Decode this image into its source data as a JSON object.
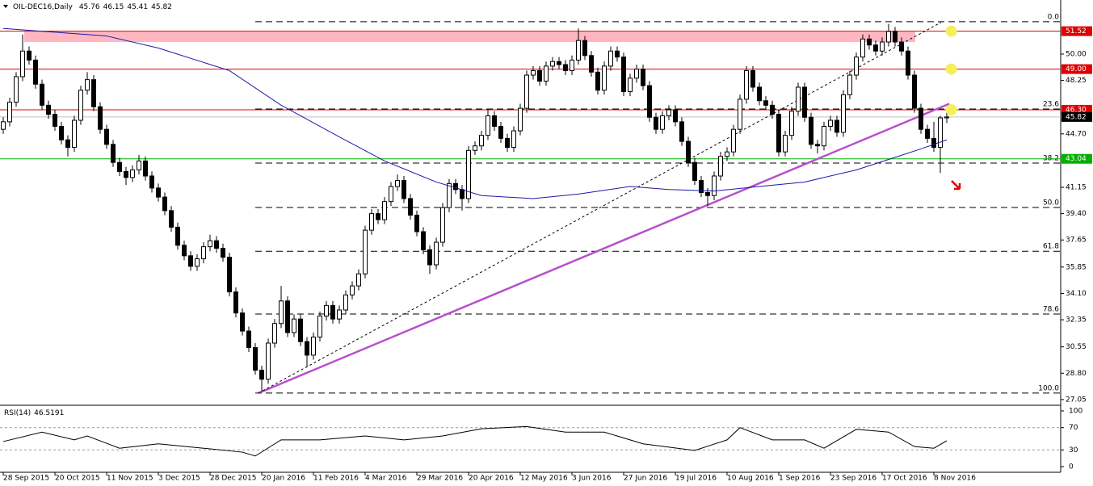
{
  "chart_data": {
    "type": "candlestick",
    "title": "OIL-DEC16,Daily",
    "rsi_title": "RSI(14)",
    "ylim": [
      26.67,
      53.59
    ],
    "yticks": [
      {
        "value": 50,
        "label": "50.00"
      },
      {
        "value": 48.25,
        "label": "48.25"
      },
      {
        "value": 44.7,
        "label": "44.70"
      },
      {
        "value": 41.15,
        "label": "41.15"
      },
      {
        "value": 39.4,
        "label": "39.40"
      },
      {
        "value": 37.65,
        "label": "37.65"
      },
      {
        "value": 35.85,
        "label": "35.85"
      },
      {
        "value": 34.1,
        "label": "34.10"
      },
      {
        "value": 32.35,
        "label": "32.35"
      },
      {
        "value": 30.55,
        "label": "30.55"
      },
      {
        "value": 28.8,
        "label": "28.80"
      },
      {
        "value": 27.05,
        "label": "27.05"
      }
    ],
    "xticks": [
      {
        "value": 0,
        "label": "28 Sep 2015"
      },
      {
        "value": 8,
        "label": "20 Oct 2015"
      },
      {
        "value": 16,
        "label": "11 Nov 2015"
      },
      {
        "value": 24,
        "label": "3 Dec 2015"
      },
      {
        "value": 32,
        "label": "28 Dec 2015"
      },
      {
        "value": 40,
        "label": "20 Jan 2016"
      },
      {
        "value": 48,
        "label": "11 Feb 2016"
      },
      {
        "value": 56,
        "label": "4 Mar 2016"
      },
      {
        "value": 64,
        "label": "29 Mar 2016"
      },
      {
        "value": 72,
        "label": "20 Apr 2016"
      },
      {
        "value": 80,
        "label": "12 May 2016"
      },
      {
        "value": 88,
        "label": "3 Jun 2016"
      },
      {
        "value": 96,
        "label": "27 Jun 2016"
      },
      {
        "value": 104,
        "label": "19 Jul 2016"
      },
      {
        "value": 112,
        "label": "10 Aug 2016"
      },
      {
        "value": 120,
        "label": "1 Sep 2016"
      },
      {
        "value": 128,
        "label": "23 Sep 2016"
      },
      {
        "value": 136,
        "label": "17 Oct 2016"
      },
      {
        "value": 144,
        "label": "8 Nov 2016"
      }
    ],
    "levels": [
      {
        "value": 51.52,
        "label": "51.52",
        "color": "#e00000",
        "bg": "#e00000"
      },
      {
        "value": 49.0,
        "label": "49.00",
        "color": "#e00000",
        "bg": "#e00000"
      },
      {
        "value": 46.3,
        "label": "46.30",
        "color": "#e00000",
        "bg": "#e00000"
      },
      {
        "value": 45.82,
        "label": "45.82",
        "color": "#c0c0c0",
        "bg": "#000000"
      },
      {
        "value": 43.04,
        "label": "43.04",
        "color": "#00b000",
        "bg": "#00b000"
      }
    ],
    "fib": [
      {
        "value": 52.15,
        "label": "0.0"
      },
      {
        "value": 46.35,
        "label": "23.6"
      },
      {
        "value": 42.76,
        "label": "38.2"
      },
      {
        "value": 39.81,
        "label": "50.0"
      },
      {
        "value": 36.9,
        "label": "61.8"
      },
      {
        "value": 32.73,
        "label": "78.6"
      },
      {
        "value": 27.48,
        "label": "100.0"
      }
    ],
    "zone": {
      "from": 50.8,
      "to": 51.52,
      "color": "#ffb6c1"
    },
    "trendlines": [
      {
        "color": "#b84fcc",
        "points": [
          [
            39.5,
            27.48
          ],
          [
            146.4,
            46.7
          ]
        ]
      },
      {
        "color": "#000000",
        "dash": true,
        "points": [
          [
            39.5,
            27.48
          ],
          [
            145.1,
            52.1
          ]
        ]
      }
    ],
    "markers": {
      "x": 146.7,
      "values": [
        51.52,
        49.0,
        46.3
      ],
      "color": "#f5f05a"
    },
    "ma": {
      "color": "#1a1aa8",
      "x": [
        0,
        16,
        24,
        35,
        43,
        52,
        59,
        67,
        74,
        82,
        89,
        97,
        103,
        110,
        117,
        124,
        132,
        137,
        142,
        146
      ],
      "values": [
        51.7,
        51.2,
        50.4,
        48.9,
        46.6,
        44.5,
        42.9,
        41.5,
        40.6,
        40.4,
        40.7,
        41.2,
        41.0,
        40.9,
        41.2,
        41.5,
        42.3,
        43.0,
        43.7,
        44.3
      ]
    },
    "rsi": {
      "ylim": [
        0,
        100
      ],
      "yticks": [
        100,
        70,
        30,
        0
      ],
      "levels": [
        70,
        30
      ],
      "x": [
        0,
        6,
        11,
        13,
        18,
        24,
        31,
        37,
        39,
        43,
        49,
        56,
        62,
        68,
        74,
        81,
        87,
        93,
        99,
        107,
        112,
        114,
        119,
        124,
        127,
        132,
        137,
        141,
        144,
        146
      ],
      "values": [
        45,
        62,
        48,
        55,
        33,
        41,
        33,
        26,
        19,
        48,
        48,
        55,
        48,
        55,
        68,
        72,
        62,
        62,
        41,
        29,
        48,
        70,
        48,
        48,
        33,
        67,
        62,
        36,
        33,
        46.5191
      ]
    },
    "ohlc": [
      [
        45.0,
        45.8,
        44.7,
        45.5
      ],
      [
        45.5,
        47.1,
        45.2,
        46.8
      ],
      [
        46.8,
        48.8,
        46.5,
        48.5
      ],
      [
        48.5,
        51.3,
        48.2,
        50.2
      ],
      [
        50.2,
        50.5,
        49.3,
        49.6
      ],
      [
        49.6,
        49.9,
        47.7,
        48.0
      ],
      [
        48.0,
        48.3,
        46.3,
        46.6
      ],
      [
        46.6,
        46.9,
        45.7,
        46.0
      ],
      [
        46.0,
        46.3,
        44.9,
        45.2
      ],
      [
        45.2,
        45.5,
        44.0,
        44.3
      ],
      [
        44.3,
        44.6,
        43.2,
        43.8
      ],
      [
        43.8,
        45.9,
        43.5,
        45.6
      ],
      [
        45.6,
        47.9,
        45.3,
        47.6
      ],
      [
        47.6,
        48.8,
        47.3,
        48.3
      ],
      [
        48.3,
        48.6,
        46.2,
        46.5
      ],
      [
        46.5,
        46.8,
        44.7,
        45.0
      ],
      [
        45.0,
        45.3,
        43.7,
        44.0
      ],
      [
        44.0,
        44.3,
        42.5,
        42.8
      ],
      [
        42.8,
        43.1,
        41.9,
        42.2
      ],
      [
        42.2,
        42.5,
        41.3,
        41.8
      ],
      [
        41.8,
        42.6,
        41.5,
        42.3
      ],
      [
        42.3,
        43.3,
        42.0,
        42.9
      ],
      [
        42.9,
        43.2,
        41.6,
        41.9
      ],
      [
        41.9,
        42.2,
        40.8,
        41.1
      ],
      [
        41.1,
        41.4,
        40.2,
        40.5
      ],
      [
        40.5,
        40.8,
        39.3,
        39.6
      ],
      [
        39.6,
        39.9,
        38.2,
        38.5
      ],
      [
        38.5,
        38.8,
        37.0,
        37.3
      ],
      [
        37.3,
        37.6,
        36.3,
        36.6
      ],
      [
        36.6,
        36.9,
        35.6,
        35.9
      ],
      [
        35.9,
        36.7,
        35.6,
        36.4
      ],
      [
        36.4,
        37.5,
        36.1,
        37.2
      ],
      [
        37.2,
        38.0,
        36.9,
        37.6
      ],
      [
        37.6,
        37.9,
        36.8,
        37.1
      ],
      [
        37.1,
        37.4,
        36.2,
        36.5
      ],
      [
        36.5,
        36.8,
        33.9,
        34.2
      ],
      [
        34.2,
        34.5,
        32.5,
        32.8
      ],
      [
        32.8,
        33.1,
        31.3,
        31.6
      ],
      [
        31.6,
        31.9,
        30.2,
        30.5
      ],
      [
        30.5,
        30.8,
        28.7,
        29.0
      ],
      [
        29.0,
        29.3,
        27.6,
        28.4
      ],
      [
        28.4,
        31.1,
        28.1,
        30.8
      ],
      [
        30.8,
        32.4,
        30.5,
        32.1
      ],
      [
        32.1,
        34.6,
        31.8,
        33.6
      ],
      [
        33.6,
        33.9,
        31.2,
        31.5
      ],
      [
        31.5,
        32.7,
        31.2,
        32.4
      ],
      [
        32.4,
        32.7,
        30.6,
        30.9
      ],
      [
        30.9,
        31.2,
        29.2,
        30.0
      ],
      [
        30.0,
        31.5,
        29.7,
        31.2
      ],
      [
        31.2,
        32.9,
        30.9,
        32.6
      ],
      [
        32.6,
        33.6,
        32.3,
        33.3
      ],
      [
        33.3,
        33.6,
        32.1,
        32.4
      ],
      [
        32.4,
        33.3,
        32.1,
        33.0
      ],
      [
        33.0,
        34.3,
        32.7,
        34.0
      ],
      [
        34.0,
        34.9,
        33.7,
        34.6
      ],
      [
        34.6,
        35.7,
        34.3,
        35.4
      ],
      [
        35.4,
        38.6,
        35.1,
        38.3
      ],
      [
        38.3,
        39.7,
        38.0,
        39.4
      ],
      [
        39.4,
        39.7,
        38.7,
        39.0
      ],
      [
        39.0,
        40.5,
        38.7,
        40.2
      ],
      [
        40.2,
        41.5,
        39.9,
        41.2
      ],
      [
        41.2,
        42.0,
        40.9,
        41.6
      ],
      [
        41.6,
        41.9,
        40.1,
        40.4
      ],
      [
        40.4,
        40.7,
        39.0,
        39.3
      ],
      [
        39.3,
        39.6,
        37.9,
        38.2
      ],
      [
        38.2,
        38.5,
        36.7,
        37.0
      ],
      [
        37.0,
        37.3,
        35.4,
        36.0
      ],
      [
        36.0,
        37.8,
        35.7,
        37.5
      ],
      [
        37.5,
        40.1,
        37.2,
        39.8
      ],
      [
        39.8,
        41.7,
        39.5,
        41.4
      ],
      [
        41.4,
        41.7,
        40.7,
        41.0
      ],
      [
        41.0,
        41.3,
        39.6,
        40.4
      ],
      [
        40.4,
        43.9,
        40.1,
        43.6
      ],
      [
        43.6,
        44.2,
        43.3,
        43.9
      ],
      [
        43.9,
        44.9,
        43.6,
        44.6
      ],
      [
        44.6,
        46.3,
        44.3,
        45.9
      ],
      [
        45.9,
        46.2,
        44.9,
        45.2
      ],
      [
        45.2,
        45.5,
        44.1,
        44.4
      ],
      [
        44.4,
        44.7,
        43.5,
        43.8
      ],
      [
        43.8,
        45.2,
        43.5,
        44.9
      ],
      [
        44.9,
        46.7,
        44.6,
        46.4
      ],
      [
        46.4,
        48.9,
        46.1,
        48.6
      ],
      [
        48.6,
        49.2,
        48.3,
        48.9
      ],
      [
        48.9,
        49.2,
        47.9,
        48.2
      ],
      [
        48.2,
        49.5,
        47.9,
        49.2
      ],
      [
        49.2,
        49.8,
        48.9,
        49.5
      ],
      [
        49.5,
        49.8,
        49.0,
        49.3
      ],
      [
        49.3,
        49.6,
        48.6,
        48.9
      ],
      [
        48.9,
        49.9,
        48.6,
        49.6
      ],
      [
        49.6,
        51.7,
        49.3,
        50.9
      ],
      [
        50.9,
        51.2,
        49.6,
        49.9
      ],
      [
        49.9,
        50.2,
        48.5,
        48.8
      ],
      [
        48.8,
        49.1,
        47.3,
        47.6
      ],
      [
        47.6,
        49.5,
        47.3,
        49.2
      ],
      [
        49.2,
        50.5,
        48.9,
        50.2
      ],
      [
        50.2,
        50.5,
        49.5,
        49.8
      ],
      [
        49.8,
        50.1,
        47.2,
        47.5
      ],
      [
        47.5,
        48.7,
        47.2,
        48.4
      ],
      [
        48.4,
        49.3,
        48.1,
        49.0
      ],
      [
        49.0,
        49.3,
        47.6,
        47.9
      ],
      [
        47.9,
        48.2,
        45.5,
        45.8
      ],
      [
        45.8,
        46.1,
        44.7,
        45.0
      ],
      [
        45.0,
        46.2,
        44.7,
        45.9
      ],
      [
        45.9,
        46.6,
        45.6,
        46.3
      ],
      [
        46.3,
        46.6,
        45.2,
        45.5
      ],
      [
        45.5,
        45.8,
        43.9,
        44.2
      ],
      [
        44.2,
        44.5,
        42.5,
        42.8
      ],
      [
        42.8,
        43.1,
        41.3,
        41.6
      ],
      [
        41.6,
        41.9,
        40.5,
        40.8
      ],
      [
        40.8,
        41.1,
        39.9,
        40.6
      ],
      [
        40.6,
        42.2,
        40.3,
        41.9
      ],
      [
        41.9,
        43.5,
        41.6,
        43.2
      ],
      [
        43.2,
        43.8,
        42.9,
        43.5
      ],
      [
        43.5,
        45.3,
        43.2,
        45.0
      ],
      [
        45.0,
        47.3,
        44.7,
        47.0
      ],
      [
        47.0,
        49.2,
        46.7,
        48.9
      ],
      [
        48.9,
        49.2,
        47.5,
        47.8
      ],
      [
        47.8,
        48.1,
        46.6,
        46.9
      ],
      [
        46.9,
        47.2,
        46.3,
        46.6
      ],
      [
        46.6,
        46.9,
        45.7,
        46.0
      ],
      [
        46.0,
        46.3,
        43.2,
        43.5
      ],
      [
        43.5,
        44.9,
        43.2,
        44.6
      ],
      [
        44.6,
        46.5,
        44.3,
        46.2
      ],
      [
        46.2,
        48.1,
        45.9,
        47.8
      ],
      [
        47.8,
        48.1,
        45.5,
        45.8
      ],
      [
        45.8,
        46.1,
        43.7,
        44.0
      ],
      [
        44.0,
        44.3,
        43.4,
        43.9
      ],
      [
        43.9,
        45.5,
        43.6,
        45.2
      ],
      [
        45.2,
        45.9,
        44.9,
        45.6
      ],
      [
        45.6,
        45.9,
        44.5,
        44.8
      ],
      [
        44.8,
        47.6,
        44.5,
        47.3
      ],
      [
        47.3,
        48.9,
        47.0,
        48.6
      ],
      [
        48.6,
        50.1,
        48.3,
        49.8
      ],
      [
        49.8,
        51.3,
        49.5,
        51.0
      ],
      [
        51.0,
        51.3,
        50.3,
        50.6
      ],
      [
        50.6,
        50.9,
        49.9,
        50.2
      ],
      [
        50.2,
        51.1,
        49.9,
        50.8
      ],
      [
        50.8,
        52.0,
        50.5,
        51.5
      ],
      [
        51.5,
        51.8,
        50.5,
        50.8
      ],
      [
        50.8,
        51.1,
        49.9,
        50.2
      ],
      [
        50.2,
        50.5,
        48.3,
        48.6
      ],
      [
        48.6,
        48.9,
        46.1,
        46.4
      ],
      [
        46.4,
        46.7,
        44.7,
        45.0
      ],
      [
        45.0,
        45.3,
        44.1,
        44.4
      ],
      [
        44.4,
        45.5,
        43.5,
        43.8
      ],
      [
        43.8,
        45.9,
        42.1,
        45.76
      ],
      [
        45.76,
        46.15,
        45.41,
        45.82
      ]
    ]
  }
}
